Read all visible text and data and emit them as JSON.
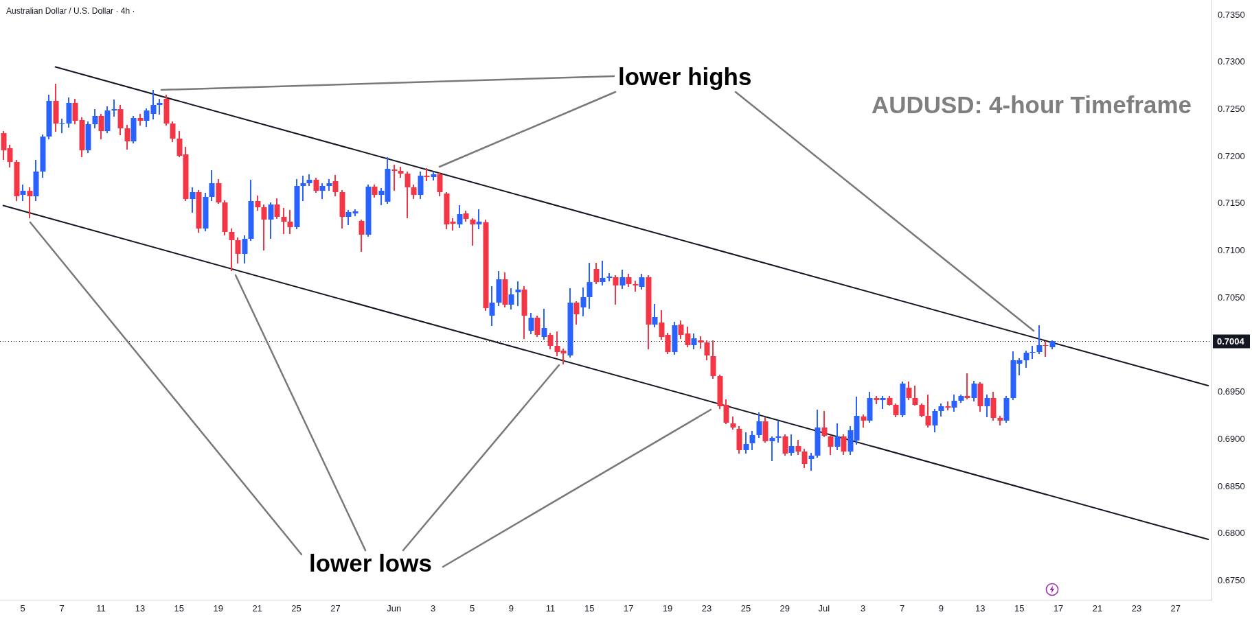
{
  "chart_data": {
    "type": "candlestick",
    "title": "AUDUSD: 4-hour Timeframe",
    "subtitle": "Australian Dollar / U.S. Dollar · 4h ·",
    "annotations": [
      "lower highs",
      "lower lows"
    ],
    "categories": [
      null,
      null,
      null,
      "5",
      null,
      null,
      null,
      null,
      null,
      "7",
      null,
      null,
      null,
      null,
      null,
      "11",
      null,
      null,
      null,
      null,
      null,
      "13",
      null,
      null,
      null,
      null,
      null,
      "15",
      null,
      null,
      null,
      null,
      null,
      "19",
      null,
      null,
      null,
      null,
      null,
      "21",
      null,
      null,
      null,
      null,
      null,
      "25",
      null,
      null,
      null,
      null,
      null,
      "27",
      null,
      null,
      null,
      null,
      null,
      null,
      null,
      null,
      "Jun",
      null,
      null,
      null,
      null,
      null,
      "3",
      null,
      null,
      null,
      null,
      null,
      "5",
      null,
      null,
      null,
      null,
      null,
      "9",
      null,
      null,
      null,
      null,
      null,
      "11",
      null,
      null,
      null,
      null,
      null,
      "15",
      null,
      null,
      null,
      null,
      null,
      "17",
      null,
      null,
      null,
      null,
      null,
      "19",
      null,
      null,
      null,
      null,
      null,
      "23",
      null,
      null,
      null,
      null,
      null,
      "25",
      null,
      null,
      null,
      null,
      null,
      "29",
      null,
      null,
      null,
      null,
      null,
      "Jul",
      null,
      null,
      null,
      null,
      null,
      "3",
      null,
      null,
      null,
      null,
      null,
      "7",
      null,
      null,
      null,
      null,
      null,
      "9",
      null,
      null,
      null,
      null,
      null,
      "13",
      null,
      null,
      null,
      null,
      null,
      "15",
      null,
      null,
      null,
      null,
      null,
      "17",
      null,
      null,
      null,
      null,
      null,
      "21",
      null,
      null,
      null,
      null,
      null,
      "23",
      null,
      null,
      null,
      null,
      null,
      "27",
      null,
      null,
      null,
      null,
      null
    ],
    "ylim": [
      0.673,
      0.7366
    ],
    "yticks": [
      {
        "value": 0.675,
        "label": "0.6750"
      },
      {
        "value": 0.68,
        "label": "0.6800"
      },
      {
        "value": 0.685,
        "label": "0.6850"
      },
      {
        "value": 0.69,
        "label": "0.6900"
      },
      {
        "value": 0.695,
        "label": "0.6950"
      },
      {
        "value": 0.705,
        "label": "0.7050"
      },
      {
        "value": 0.71,
        "label": "0.7100"
      },
      {
        "value": 0.715,
        "label": "0.7150"
      },
      {
        "value": 0.72,
        "label": "0.7200"
      },
      {
        "value": 0.725,
        "label": "0.7250"
      },
      {
        "value": 0.73,
        "label": "0.7300"
      },
      {
        "value": 0.735,
        "label": "0.7350"
      }
    ],
    "ref_lines": [
      {
        "axis": "y",
        "value": 0.7004,
        "label": "0.7004",
        "line_style": "dotted",
        "color": "#131722"
      }
    ],
    "ohlc": [
      [
        0.7225,
        0.7227,
        0.7197,
        0.7207
      ],
      [
        0.7209,
        0.7212,
        0.7189,
        0.7194
      ],
      [
        0.7194,
        0.7196,
        0.7153,
        0.7158
      ],
      [
        0.7159,
        0.717,
        0.7153,
        0.7164
      ],
      [
        0.7164,
        0.7167,
        0.7135,
        0.7158
      ],
      [
        0.7158,
        0.7196,
        0.7153,
        0.7184
      ],
      [
        0.7184,
        0.7223,
        0.7178,
        0.7221
      ],
      [
        0.7221,
        0.7265,
        0.7219,
        0.7259
      ],
      [
        0.7259,
        0.7277,
        0.7227,
        0.7235
      ],
      [
        0.7235,
        0.724,
        0.7225,
        0.7236
      ],
      [
        0.7235,
        0.7262,
        0.7231,
        0.7257
      ],
      [
        0.7257,
        0.7261,
        0.7235,
        0.7238
      ],
      [
        0.7239,
        0.7241,
        0.72,
        0.7207
      ],
      [
        0.7207,
        0.7237,
        0.7204,
        0.7234
      ],
      [
        0.7234,
        0.725,
        0.723,
        0.7243
      ],
      [
        0.7243,
        0.7245,
        0.7219,
        0.7227
      ],
      [
        0.7227,
        0.7253,
        0.7225,
        0.7249
      ],
      [
        0.7249,
        0.726,
        0.7243,
        0.725
      ],
      [
        0.725,
        0.7254,
        0.7223,
        0.723
      ],
      [
        0.723,
        0.7233,
        0.7208,
        0.7216
      ],
      [
        0.7216,
        0.7243,
        0.7214,
        0.7241
      ],
      [
        0.7241,
        0.7245,
        0.7233,
        0.7238
      ],
      [
        0.7238,
        0.7251,
        0.7232,
        0.7249
      ],
      [
        0.7245,
        0.727,
        0.724,
        0.7255
      ],
      [
        0.7255,
        0.7261,
        0.7245,
        0.7257
      ],
      [
        0.7261,
        0.7265,
        0.7233,
        0.7235
      ],
      [
        0.7235,
        0.7237,
        0.7216,
        0.7219
      ],
      [
        0.7219,
        0.7227,
        0.72,
        0.7201
      ],
      [
        0.7202,
        0.721,
        0.7153,
        0.7155
      ],
      [
        0.7155,
        0.7167,
        0.7141,
        0.7162
      ],
      [
        0.7162,
        0.7164,
        0.712,
        0.7124
      ],
      [
        0.7124,
        0.7161,
        0.7121,
        0.7157
      ],
      [
        0.7157,
        0.7185,
        0.7153,
        0.7172
      ],
      [
        0.7172,
        0.7176,
        0.715,
        0.7151
      ],
      [
        0.7151,
        0.7153,
        0.7117,
        0.712
      ],
      [
        0.712,
        0.7123,
        0.7079,
        0.7111
      ],
      [
        0.7111,
        0.7114,
        0.7087,
        0.7097
      ],
      [
        0.7097,
        0.7116,
        0.7087,
        0.7113
      ],
      [
        0.7113,
        0.7175,
        0.7111,
        0.7153
      ],
      [
        0.7153,
        0.7158,
        0.7143,
        0.7146
      ],
      [
        0.7146,
        0.7149,
        0.7101,
        0.7133
      ],
      [
        0.7133,
        0.7151,
        0.7113,
        0.7149
      ],
      [
        0.7149,
        0.7155,
        0.7134,
        0.7136
      ],
      [
        0.7136,
        0.7145,
        0.7118,
        0.7131
      ],
      [
        0.7131,
        0.7143,
        0.7118,
        0.7125
      ],
      [
        0.7125,
        0.7176,
        0.7123,
        0.7169
      ],
      [
        0.7169,
        0.7179,
        0.7153,
        0.7172
      ],
      [
        0.7172,
        0.7181,
        0.7169,
        0.7175
      ],
      [
        0.7175,
        0.7177,
        0.7162,
        0.7164
      ],
      [
        0.7164,
        0.7171,
        0.7155,
        0.7169
      ],
      [
        0.7169,
        0.7176,
        0.7164,
        0.7172
      ],
      [
        0.7174,
        0.718,
        0.7158,
        0.7162
      ],
      [
        0.7162,
        0.7164,
        0.7124,
        0.7136
      ],
      [
        0.7136,
        0.7143,
        0.7128,
        0.7141
      ],
      [
        0.714,
        0.7144,
        0.7137,
        0.7142
      ],
      [
        0.7132,
        0.7133,
        0.7099,
        0.7117
      ],
      [
        0.7117,
        0.717,
        0.7115,
        0.7168
      ],
      [
        0.7168,
        0.717,
        0.7157,
        0.7159
      ],
      [
        0.7159,
        0.7166,
        0.7149,
        0.7164
      ],
      [
        0.7152,
        0.7199,
        0.715,
        0.7187
      ],
      [
        0.7186,
        0.7191,
        0.7164,
        0.7185
      ],
      [
        0.7185,
        0.7189,
        0.7178,
        0.7182
      ],
      [
        0.7182,
        0.7184,
        0.7135,
        0.7167
      ],
      [
        0.7167,
        0.717,
        0.7155,
        0.7159
      ],
      [
        0.7159,
        0.7184,
        0.7155,
        0.718
      ],
      [
        0.718,
        0.7187,
        0.7174,
        0.7178
      ],
      [
        0.7178,
        0.7184,
        0.7175,
        0.7181
      ],
      [
        0.7181,
        0.7183,
        0.7158,
        0.7162
      ],
      [
        0.7161,
        0.7162,
        0.7123,
        0.7128
      ],
      [
        0.7131,
        0.7134,
        0.7122,
        0.7129
      ],
      [
        0.7128,
        0.7148,
        0.7125,
        0.7139
      ],
      [
        0.714,
        0.7142,
        0.7131,
        0.7134
      ],
      [
        0.7133,
        0.7134,
        0.7106,
        0.7128
      ],
      [
        0.7128,
        0.7144,
        0.7123,
        0.7131
      ],
      [
        0.713,
        0.7133,
        0.7037,
        0.7039
      ],
      [
        0.7031,
        0.7062,
        0.7021,
        0.7045
      ],
      [
        0.7045,
        0.7078,
        0.7042,
        0.707
      ],
      [
        0.707,
        0.7077,
        0.704,
        0.7043
      ],
      [
        0.7043,
        0.706,
        0.7038,
        0.7054
      ],
      [
        0.7056,
        0.7067,
        0.7042,
        0.7059
      ],
      [
        0.7059,
        0.7062,
        0.7007,
        0.7031
      ],
      [
        0.7015,
        0.7034,
        0.7012,
        0.7029
      ],
      [
        0.7029,
        0.7031,
        0.7009,
        0.7011
      ],
      [
        0.7009,
        0.7038,
        0.7006,
        0.7018
      ],
      [
        0.7011,
        0.7013,
        0.6996,
        0.6999
      ],
      [
        0.6999,
        0.7014,
        0.6989,
        0.6993
      ],
      [
        0.6994,
        0.6996,
        0.698,
        0.6991
      ],
      [
        0.6989,
        0.706,
        0.6987,
        0.7045
      ],
      [
        0.7045,
        0.7046,
        0.7022,
        0.7033
      ],
      [
        0.704,
        0.7061,
        0.7031,
        0.7051
      ],
      [
        0.7051,
        0.7087,
        0.7039,
        0.7067
      ],
      [
        0.7081,
        0.7087,
        0.7065,
        0.7067
      ],
      [
        0.7067,
        0.7089,
        0.7064,
        0.7071
      ],
      [
        0.7071,
        0.7076,
        0.7068,
        0.7073
      ],
      [
        0.7072,
        0.7074,
        0.7043,
        0.7063
      ],
      [
        0.7063,
        0.708,
        0.706,
        0.7072
      ],
      [
        0.7072,
        0.7075,
        0.7062,
        0.7065
      ],
      [
        0.7065,
        0.7068,
        0.7057,
        0.7063
      ],
      [
        0.7062,
        0.7075,
        0.7059,
        0.7072
      ],
      [
        0.7072,
        0.7074,
        0.6996,
        0.7022
      ],
      [
        0.7022,
        0.7043,
        0.7019,
        0.703
      ],
      [
        0.7024,
        0.7037,
        0.7006,
        0.7009
      ],
      [
        0.7011,
        0.7013,
        0.6991,
        0.6993
      ],
      [
        0.6993,
        0.7024,
        0.699,
        0.7021
      ],
      [
        0.7022,
        0.7026,
        0.7007,
        0.7011
      ],
      [
        0.7012,
        0.7019,
        0.6998,
        0.7
      ],
      [
        0.7,
        0.7012,
        0.6996,
        0.7007
      ],
      [
        0.7005,
        0.7009,
        0.6997,
        0.7003
      ],
      [
        0.7003,
        0.7005,
        0.6984,
        0.6989
      ],
      [
        0.6988,
        0.7005,
        0.6965,
        0.6967
      ],
      [
        0.6967,
        0.6968,
        0.6933,
        0.6935
      ],
      [
        0.6937,
        0.6942,
        0.6917,
        0.6918
      ],
      [
        0.6917,
        0.6924,
        0.6911,
        0.6913
      ],
      [
        0.6911,
        0.6914,
        0.6885,
        0.6889
      ],
      [
        0.6889,
        0.6907,
        0.6885,
        0.6895
      ],
      [
        0.6896,
        0.6909,
        0.6889,
        0.6905
      ],
      [
        0.6905,
        0.6928,
        0.6902,
        0.6919
      ],
      [
        0.6919,
        0.6923,
        0.6897,
        0.6898
      ],
      [
        0.6898,
        0.6903,
        0.6877,
        0.6902
      ],
      [
        0.6902,
        0.6919,
        0.6897,
        0.6903
      ],
      [
        0.6903,
        0.6905,
        0.6883,
        0.6885
      ],
      [
        0.6886,
        0.6905,
        0.6883,
        0.6893
      ],
      [
        0.6893,
        0.6899,
        0.6884,
        0.6887
      ],
      [
        0.6887,
        0.689,
        0.687,
        0.6874
      ],
      [
        0.6879,
        0.6885,
        0.6867,
        0.6883
      ],
      [
        0.6883,
        0.6931,
        0.6881,
        0.6913
      ],
      [
        0.6913,
        0.693,
        0.6903,
        0.6904
      ],
      [
        0.6903,
        0.6904,
        0.6884,
        0.6892
      ],
      [
        0.6892,
        0.6917,
        0.6889,
        0.6903
      ],
      [
        0.6903,
        0.6905,
        0.6884,
        0.6887
      ],
      [
        0.6887,
        0.6914,
        0.6884,
        0.691
      ],
      [
        0.6899,
        0.6945,
        0.6895,
        0.6925
      ],
      [
        0.6924,
        0.6926,
        0.6913,
        0.692
      ],
      [
        0.692,
        0.695,
        0.6918,
        0.6944
      ],
      [
        0.6944,
        0.6946,
        0.6938,
        0.6942
      ],
      [
        0.6942,
        0.6946,
        0.6933,
        0.6944
      ],
      [
        0.6944,
        0.6946,
        0.6936,
        0.6937
      ],
      [
        0.6937,
        0.6938,
        0.6924,
        0.6926
      ],
      [
        0.6926,
        0.6961,
        0.6924,
        0.6959
      ],
      [
        0.6955,
        0.6961,
        0.6942,
        0.6944
      ],
      [
        0.6944,
        0.6957,
        0.6936,
        0.6937
      ],
      [
        0.6937,
        0.6938,
        0.6924,
        0.6925
      ],
      [
        0.6925,
        0.6947,
        0.6913,
        0.6915
      ],
      [
        0.6915,
        0.6932,
        0.6908,
        0.693
      ],
      [
        0.693,
        0.6938,
        0.6925,
        0.6935
      ],
      [
        0.6935,
        0.694,
        0.6931,
        0.6934
      ],
      [
        0.6934,
        0.6947,
        0.693,
        0.6941
      ],
      [
        0.6941,
        0.6947,
        0.6939,
        0.6946
      ],
      [
        0.6946,
        0.697,
        0.6943,
        0.6944
      ],
      [
        0.6944,
        0.6962,
        0.6941,
        0.6959
      ],
      [
        0.6959,
        0.696,
        0.693,
        0.6935
      ],
      [
        0.6935,
        0.6947,
        0.6924,
        0.6944
      ],
      [
        0.6944,
        0.695,
        0.692,
        0.6923
      ],
      [
        0.6923,
        0.6925,
        0.6915,
        0.692
      ],
      [
        0.692,
        0.6946,
        0.6918,
        0.6944
      ],
      [
        0.6944,
        0.6993,
        0.6942,
        0.6984
      ],
      [
        0.698,
        0.6986,
        0.6968,
        0.6984
      ],
      [
        0.6984,
        0.6994,
        0.6976,
        0.6992
      ],
      [
        0.6992,
        0.6999,
        0.6986,
        0.6993
      ],
      [
        0.6993,
        0.7021,
        0.6991,
        0.7
      ],
      [
        0.7,
        0.7004,
        0.6988,
        0.6999
      ],
      [
        0.6998,
        0.7005,
        0.6996,
        0.7004
      ],
      null,
      null,
      null,
      null,
      null,
      null,
      null,
      null,
      null,
      null,
      null,
      null,
      null,
      null,
      null,
      null,
      null,
      null,
      null,
      null,
      null,
      null,
      null,
      null
    ],
    "colors": [
      "#f23645",
      "#f23645",
      "#f23645",
      "#2962ff",
      "#f23645",
      "#2962ff",
      "#2962ff",
      "#2962ff",
      "#f23645",
      "#2962ff",
      "#2962ff",
      "#f23645",
      "#f23645",
      "#2962ff",
      "#2962ff",
      "#f23645",
      "#2962ff",
      "#2962ff",
      "#f23645",
      "#f23645",
      "#2962ff",
      "#f23645",
      "#2962ff",
      "#2962ff",
      "#2962ff",
      "#f23645",
      "#f23645",
      "#f23645",
      "#f23645",
      "#2962ff",
      "#f23645",
      "#2962ff",
      "#2962ff",
      "#f23645",
      "#f23645",
      "#f23645",
      "#f23645",
      "#2962ff",
      "#2962ff",
      "#f23645",
      "#f23645",
      "#2962ff",
      "#f23645",
      "#f23645",
      "#f23645",
      "#2962ff",
      "#2962ff",
      "#2962ff",
      "#f23645",
      "#2962ff",
      "#2962ff",
      "#f23645",
      "#f23645",
      "#2962ff",
      "#2962ff",
      "#f23645",
      "#2962ff",
      "#f23645",
      "#2962ff",
      "#2962ff",
      "#f23645",
      "#f23645",
      "#f23645",
      "#f23645",
      "#2962ff",
      "#f23645",
      "#2962ff",
      "#f23645",
      "#f23645",
      "#f23645",
      "#2962ff",
      "#f23645",
      "#f23645",
      "#2962ff",
      "#f23645",
      "#2962ff",
      "#2962ff",
      "#f23645",
      "#2962ff",
      "#2962ff",
      "#f23645",
      "#2962ff",
      "#f23645",
      "#2962ff",
      "#f23645",
      "#f23645",
      "#f23645",
      "#2962ff",
      "#f23645",
      "#2962ff",
      "#2962ff",
      "#f23645",
      "#2962ff",
      "#2962ff",
      "#f23645",
      "#2962ff",
      "#f23645",
      "#f23645",
      "#2962ff",
      "#f23645",
      "#2962ff",
      "#f23645",
      "#f23645",
      "#2962ff",
      "#f23645",
      "#f23645",
      "#2962ff",
      "#f23645",
      "#f23645",
      "#f23645",
      "#f23645",
      "#f23645",
      "#f23645",
      "#f23645",
      "#2962ff",
      "#2962ff",
      "#2962ff",
      "#f23645",
      "#2962ff",
      "#2962ff",
      "#f23645",
      "#2962ff",
      "#f23645",
      "#f23645",
      "#2962ff",
      "#2962ff",
      "#f23645",
      "#f23645",
      "#2962ff",
      "#f23645",
      "#2962ff",
      "#2962ff",
      "#f23645",
      "#2962ff",
      "#f23645",
      "#2962ff",
      "#f23645",
      "#f23645",
      "#2962ff",
      "#f23645",
      "#f23645",
      "#f23645",
      "#f23645",
      "#2962ff",
      "#2962ff",
      "#f23645",
      "#2962ff",
      "#2962ff",
      "#f23645",
      "#2962ff",
      "#f23645",
      "#2962ff",
      "#f23645",
      "#f23645",
      "#2962ff",
      "#2962ff",
      "#2962ff",
      "#2962ff",
      "#2962ff",
      "#2962ff",
      "#f23645",
      "#2962ff",
      null,
      null,
      null,
      null,
      null,
      null,
      null,
      null,
      null,
      null,
      null,
      null,
      null,
      null,
      null,
      null,
      null,
      null,
      null,
      null,
      null,
      null,
      null,
      null
    ],
    "series": [
      {
        "type": "line",
        "color": "#131722",
        "values": [
          null,
          null,
          null,
          null,
          null,
          null,
          null,
          null,
          0.7295,
          null,
          null,
          null,
          null,
          null,
          null,
          null,
          null,
          null,
          null,
          null,
          null,
          null,
          null,
          null,
          null,
          null,
          null,
          null,
          null,
          null,
          null,
          null,
          null,
          null,
          null,
          null,
          null,
          null,
          null,
          null,
          null,
          null,
          null,
          null,
          null,
          null,
          null,
          null,
          null,
          null,
          null,
          null,
          null,
          null,
          null,
          null,
          null,
          null,
          null,
          null,
          null,
          null,
          null,
          null,
          null,
          null,
          null,
          null,
          null,
          null,
          null,
          null,
          null,
          null,
          null,
          null,
          null,
          null,
          null,
          null,
          null,
          null,
          null,
          null,
          null,
          null,
          null,
          null,
          null,
          null,
          null,
          null,
          null,
          null,
          null,
          null,
          null,
          null,
          null,
          null,
          null,
          null,
          null,
          null,
          null,
          null,
          null,
          null,
          null,
          null,
          null,
          null,
          null,
          null,
          null,
          null,
          null,
          null,
          null,
          null,
          null,
          null,
          null,
          null,
          null,
          null,
          null,
          null,
          null,
          null,
          null,
          null,
          null,
          null,
          null,
          null,
          null,
          null,
          null,
          null,
          null,
          null,
          null,
          null,
          null,
          null,
          null,
          null,
          null,
          null,
          null,
          null,
          null,
          null,
          null,
          null,
          null,
          null,
          null,
          null,
          null,
          null,
          null,
          null,
          null,
          null,
          null,
          null,
          null,
          null,
          null,
          null,
          null,
          null,
          null,
          null,
          null,
          null,
          null,
          null,
          null,
          null,
          null,
          null,
          null,
          0.6957
        ]
      },
      {
        "type": "line",
        "color": "#131722",
        "values": [
          0.7148,
          null,
          null,
          null,
          null,
          null,
          null,
          null,
          null,
          null,
          null,
          null,
          null,
          null,
          null,
          null,
          null,
          null,
          null,
          null,
          null,
          null,
          null,
          null,
          null,
          null,
          null,
          null,
          null,
          null,
          null,
          null,
          null,
          null,
          null,
          null,
          null,
          null,
          null,
          null,
          null,
          null,
          null,
          null,
          null,
          null,
          null,
          null,
          null,
          null,
          null,
          null,
          null,
          null,
          null,
          null,
          null,
          null,
          null,
          null,
          null,
          null,
          null,
          null,
          null,
          null,
          null,
          null,
          null,
          null,
          null,
          null,
          null,
          null,
          null,
          null,
          null,
          null,
          null,
          null,
          null,
          null,
          null,
          null,
          null,
          null,
          null,
          null,
          null,
          null,
          null,
          null,
          null,
          null,
          null,
          null,
          null,
          null,
          null,
          null,
          null,
          null,
          null,
          null,
          null,
          null,
          null,
          null,
          null,
          null,
          null,
          null,
          null,
          null,
          null,
          null,
          null,
          null,
          null,
          null,
          null,
          null,
          null,
          null,
          null,
          null,
          null,
          null,
          null,
          null,
          null,
          null,
          null,
          null,
          null,
          null,
          null,
          null,
          null,
          null,
          null,
          null,
          null,
          null,
          null,
          null,
          null,
          null,
          null,
          null,
          null,
          null,
          null,
          null,
          null,
          null,
          null,
          null,
          null,
          null,
          null,
          null,
          null,
          null,
          null,
          null,
          null,
          null,
          null,
          null,
          null,
          null,
          null,
          null,
          null,
          null,
          null,
          null,
          null,
          null,
          null,
          null,
          null,
          null,
          null,
          0.6794
        ]
      }
    ]
  }
}
